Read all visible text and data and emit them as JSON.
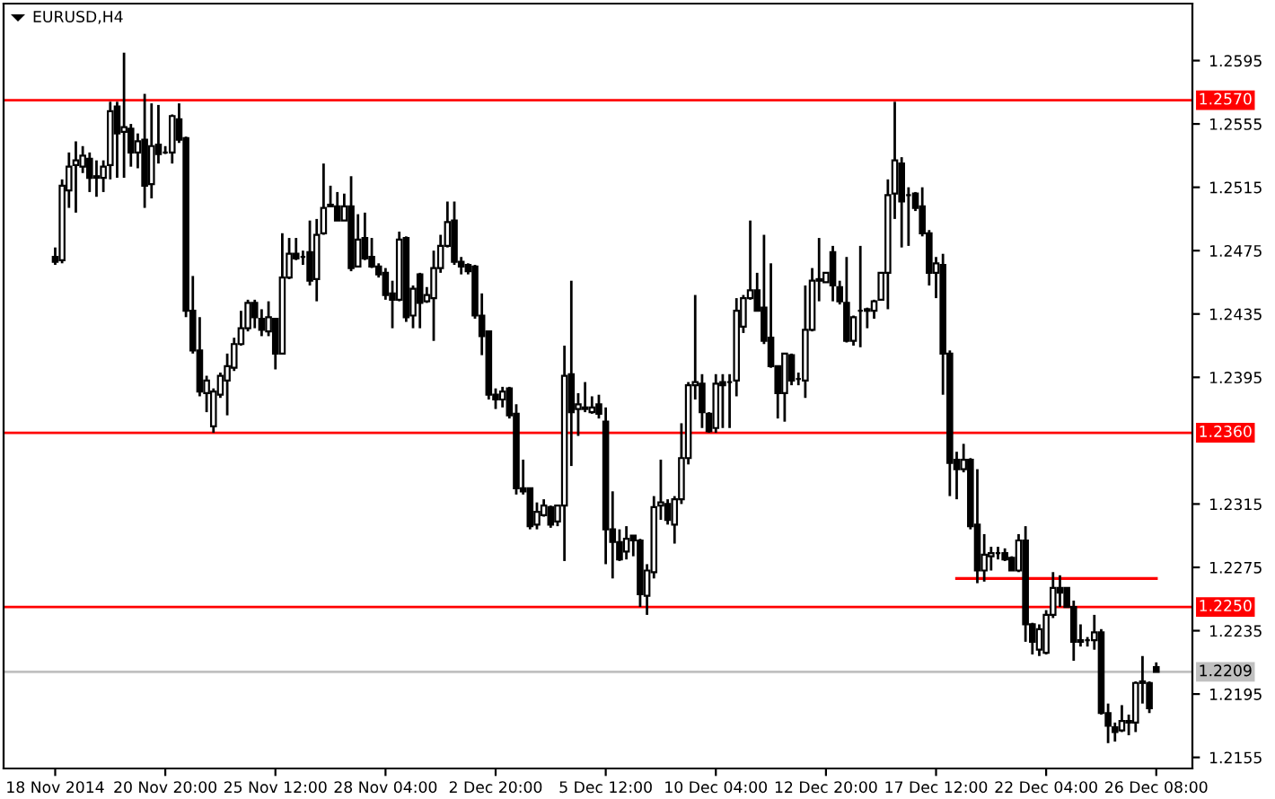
{
  "chart_data": {
    "type": "candlestick",
    "title": "EURUSD,H4",
    "color": "#000000",
    "categories": [
      "18 Nov 2014",
      null,
      null,
      null,
      null,
      null,
      null,
      null,
      null,
      null,
      null,
      null,
      null,
      null,
      null,
      null,
      "20 Nov 20:00",
      null,
      null,
      null,
      null,
      null,
      null,
      null,
      null,
      null,
      null,
      null,
      null,
      null,
      null,
      null,
      "25 Nov 12:00",
      null,
      null,
      null,
      null,
      null,
      null,
      null,
      null,
      null,
      null,
      null,
      null,
      null,
      null,
      null,
      "28 Nov 04:00",
      null,
      null,
      null,
      null,
      null,
      null,
      null,
      null,
      null,
      null,
      null,
      null,
      null,
      null,
      null,
      "2 Dec 20:00",
      null,
      null,
      null,
      null,
      null,
      null,
      null,
      null,
      null,
      null,
      null,
      null,
      null,
      null,
      null,
      "5 Dec 12:00",
      null,
      null,
      null,
      null,
      null,
      null,
      null,
      null,
      null,
      null,
      null,
      null,
      null,
      null,
      null,
      "10 Dec 04:00",
      null,
      null,
      null,
      null,
      null,
      null,
      null,
      null,
      null,
      null,
      null,
      null,
      null,
      null,
      null,
      "12 Dec 20:00",
      null,
      null,
      null,
      null,
      null,
      null,
      null,
      null,
      null,
      null,
      null,
      null,
      null,
      null,
      null,
      "17 Dec 12:00",
      null,
      null,
      null,
      null,
      null,
      null,
      null,
      null,
      null,
      null,
      null,
      null,
      null,
      null,
      null,
      "22 Dec 04:00",
      null,
      null,
      null,
      null,
      null,
      null,
      null,
      null,
      null,
      null,
      null,
      null,
      null,
      null,
      null,
      "26 Dec 08:00"
    ],
    "ohlc": [
      [
        1.2471,
        1.2477,
        1.2466,
        1.2468
      ],
      [
        1.2469,
        1.252,
        1.2467,
        1.2516
      ],
      [
        1.2513,
        1.2537,
        1.2502,
        1.2528
      ],
      [
        1.2529,
        1.2544,
        1.2499,
        1.2532
      ],
      [
        1.2528,
        1.2541,
        1.2524,
        1.2535
      ],
      [
        1.2533,
        1.2537,
        1.2512,
        1.2521
      ],
      [
        1.2522,
        1.2532,
        1.2509,
        1.2521
      ],
      [
        1.2521,
        1.2532,
        1.2512,
        1.2528
      ],
      [
        1.2529,
        1.2569,
        1.252,
        1.2563
      ],
      [
        1.2566,
        1.2569,
        1.2521,
        1.2549
      ],
      [
        1.255,
        1.26,
        1.2521,
        1.2553
      ],
      [
        1.2552,
        1.2555,
        1.2528,
        1.2537
      ],
      [
        1.2537,
        1.2549,
        1.2527,
        1.2544
      ],
      [
        1.2545,
        1.2574,
        1.2502,
        1.2516
      ],
      [
        1.2517,
        1.2568,
        1.2508,
        1.2541
      ],
      [
        1.2542,
        1.2567,
        1.253,
        1.2536
      ],
      [
        1.2537,
        1.2541,
        1.2536,
        1.2537
      ],
      [
        1.2537,
        1.2561,
        1.253,
        1.256
      ],
      [
        1.2558,
        1.2568,
        1.2543,
        1.2545
      ],
      [
        1.2546,
        1.2547,
        1.2433,
        1.2437
      ],
      [
        1.2437,
        1.2459,
        1.241,
        1.2412
      ],
      [
        1.2412,
        1.2433,
        1.2383,
        1.2386
      ],
      [
        1.2385,
        1.2396,
        1.2373,
        1.2393
      ],
      [
        1.2364,
        1.2388,
        1.236,
        1.2386
      ],
      [
        1.2384,
        1.2398,
        1.2382,
        1.2396
      ],
      [
        1.2393,
        1.241,
        1.2371,
        1.2402
      ],
      [
        1.2401,
        1.242,
        1.2399,
        1.2416
      ],
      [
        1.2416,
        1.2437,
        1.2415,
        1.2426
      ],
      [
        1.2426,
        1.2444,
        1.2424,
        1.2442
      ],
      [
        1.2442,
        1.2444,
        1.2426,
        1.2433
      ],
      [
        1.2432,
        1.2438,
        1.2421,
        1.2425
      ],
      [
        1.2424,
        1.2443,
        1.2421,
        1.2433
      ],
      [
        1.2432,
        1.2432,
        1.24,
        1.241
      ],
      [
        1.241,
        1.2486,
        1.241,
        1.2458
      ],
      [
        1.2458,
        1.2483,
        1.2457,
        1.2473
      ],
      [
        1.2473,
        1.2483,
        1.2469,
        1.247
      ],
      [
        1.2471,
        1.2475,
        1.2466,
        1.2471
      ],
      [
        1.2474,
        1.2494,
        1.2453,
        1.2456
      ],
      [
        1.2457,
        1.2495,
        1.2443,
        1.2485
      ],
      [
        1.2486,
        1.253,
        1.2485,
        1.2502
      ],
      [
        1.2503,
        1.2516,
        1.2503,
        1.2504
      ],
      [
        1.2503,
        1.2512,
        1.2494,
        1.2494
      ],
      [
        1.2494,
        1.2511,
        1.2494,
        1.2503
      ],
      [
        1.2503,
        1.2522,
        1.2462,
        1.2464
      ],
      [
        1.2465,
        1.2498,
        1.2465,
        1.2482
      ],
      [
        1.2483,
        1.2499,
        1.2469,
        1.247
      ],
      [
        1.2471,
        1.2483,
        1.2464,
        1.2465
      ],
      [
        1.2465,
        1.2467,
        1.2458,
        1.246
      ],
      [
        1.2461,
        1.2464,
        1.2444,
        1.2447
      ],
      [
        1.2448,
        1.2456,
        1.2426,
        1.2444
      ],
      [
        1.2444,
        1.2487,
        1.2443,
        1.2482
      ],
      [
        1.2483,
        1.2484,
        1.243,
        1.2433
      ],
      [
        1.2434,
        1.2453,
        1.2426,
        1.2451
      ],
      [
        1.246,
        1.2461,
        1.2426,
        1.2442
      ],
      [
        1.2443,
        1.2452,
        1.2442,
        1.2447
      ],
      [
        1.2445,
        1.2475,
        1.2418,
        1.2464
      ],
      [
        1.2464,
        1.2485,
        1.2461,
        1.2478
      ],
      [
        1.2478,
        1.2506,
        1.2477,
        1.2493
      ],
      [
        1.2494,
        1.2506,
        1.2466,
        1.2468
      ],
      [
        1.2468,
        1.2471,
        1.246,
        1.2465
      ],
      [
        1.2466,
        1.2467,
        1.246,
        1.2462
      ],
      [
        1.2465,
        1.2466,
        1.2432,
        1.2434
      ],
      [
        1.2434,
        1.2448,
        1.2409,
        1.2421
      ],
      [
        1.2424,
        1.2424,
        1.2381,
        1.2384
      ],
      [
        1.2384,
        1.2388,
        1.2375,
        1.2381
      ],
      [
        1.2381,
        1.2389,
        1.2376,
        1.2386
      ],
      [
        1.2388,
        1.2389,
        1.2369,
        1.2371
      ],
      [
        1.2372,
        1.2378,
        1.2321,
        1.2325
      ],
      [
        1.2325,
        1.2343,
        1.2321,
        1.2323
      ],
      [
        1.2325,
        1.2325,
        1.2299,
        1.2301
      ],
      [
        1.2302,
        1.2316,
        1.2299,
        1.231
      ],
      [
        1.2308,
        1.2318,
        1.2307,
        1.2314
      ],
      [
        1.2313,
        1.2314,
        1.23,
        1.2302
      ],
      [
        1.2304,
        1.2314,
        1.2301,
        1.2314
      ],
      [
        1.2314,
        1.2415,
        1.2279,
        1.2396
      ],
      [
        1.2397,
        1.2456,
        1.2339,
        1.2373
      ],
      [
        1.2375,
        1.2385,
        1.2358,
        1.2378
      ],
      [
        1.2375,
        1.2392,
        1.2373,
        1.2376
      ],
      [
        1.2373,
        1.2383,
        1.2372,
        1.2376
      ],
      [
        1.2378,
        1.2384,
        1.2369,
        1.2372
      ],
      [
        1.2367,
        1.2376,
        1.2277,
        1.2299
      ],
      [
        1.2299,
        1.2323,
        1.2268,
        1.2291
      ],
      [
        1.2291,
        1.2299,
        1.2279,
        1.228
      ],
      [
        1.2285,
        1.2301,
        1.228,
        1.2293
      ],
      [
        1.2295,
        1.2295,
        1.2282,
        1.2292
      ],
      [
        1.2292,
        1.2293,
        1.225,
        1.2258
      ],
      [
        1.2257,
        1.2277,
        1.2245,
        1.2273
      ],
      [
        1.2272,
        1.232,
        1.2268,
        1.2313
      ],
      [
        1.2314,
        1.2343,
        1.2305,
        1.2316
      ],
      [
        1.2315,
        1.2318,
        1.2302,
        1.2305
      ],
      [
        1.2302,
        1.232,
        1.229,
        1.2318
      ],
      [
        1.2318,
        1.2366,
        1.2315,
        1.2344
      ],
      [
        1.2344,
        1.2392,
        1.234,
        1.239
      ],
      [
        1.239,
        1.2447,
        1.2381,
        1.2392
      ],
      [
        1.2391,
        1.2397,
        1.2363,
        1.2373
      ],
      [
        1.2372,
        1.2373,
        1.236,
        1.2361
      ],
      [
        1.2363,
        1.2397,
        1.236,
        1.2391
      ],
      [
        1.2392,
        1.2397,
        1.2363,
        1.239
      ],
      [
        1.2392,
        1.2397,
        1.2363,
        1.2392
      ],
      [
        1.2393,
        1.2445,
        1.2383,
        1.2437
      ],
      [
        1.2427,
        1.2447,
        1.2423,
        1.2445
      ],
      [
        1.2445,
        1.2494,
        1.2444,
        1.245
      ],
      [
        1.245,
        1.2461,
        1.2437,
        1.2437
      ],
      [
        1.2439,
        1.2485,
        1.2416,
        1.2418
      ],
      [
        1.242,
        1.2467,
        1.2401,
        1.2402
      ],
      [
        1.2402,
        1.2402,
        1.2369,
        1.2385
      ],
      [
        1.2385,
        1.241,
        1.2367,
        1.241
      ],
      [
        1.2409,
        1.241,
        1.239,
        1.2393
      ],
      [
        1.2394,
        1.2398,
        1.239,
        1.2394
      ],
      [
        1.2393,
        1.2453,
        1.2382,
        1.2425
      ],
      [
        1.2425,
        1.2464,
        1.2424,
        1.2456
      ],
      [
        1.2456,
        1.2483,
        1.2443,
        1.2457
      ],
      [
        1.2455,
        1.2461,
        1.2455,
        1.2461
      ],
      [
        1.2474,
        1.2478,
        1.2443,
        1.2453
      ],
      [
        1.2452,
        1.2456,
        1.2441,
        1.2443
      ],
      [
        1.2442,
        1.2471,
        1.2417,
        1.2418
      ],
      [
        1.2418,
        1.2434,
        1.2415,
        1.2433
      ],
      [
        1.2437,
        1.2478,
        1.2414,
        1.2437
      ],
      [
        1.2437,
        1.2439,
        1.2426,
        1.2438
      ],
      [
        1.2437,
        1.2444,
        1.2432,
        1.2443
      ],
      [
        1.2444,
        1.2461,
        1.2444,
        1.2461
      ],
      [
        1.2461,
        1.252,
        1.2438,
        1.251
      ],
      [
        1.2511,
        1.2569,
        1.2495,
        1.2532
      ],
      [
        1.253,
        1.2534,
        1.2477,
        1.2506
      ],
      [
        1.251,
        1.2515,
        1.2478,
        1.251
      ],
      [
        1.2511,
        1.2512,
        1.25,
        1.2502
      ],
      [
        1.2503,
        1.2515,
        1.2484,
        1.2486
      ],
      [
        1.2486,
        1.2488,
        1.2453,
        1.2461
      ],
      [
        1.2461,
        1.2471,
        1.2445,
        1.2467
      ],
      [
        1.2466,
        1.2473,
        1.2384,
        1.241
      ],
      [
        1.241,
        1.2412,
        1.232,
        1.2341
      ],
      [
        1.2343,
        1.2348,
        1.2318,
        1.2337
      ],
      [
        1.2337,
        1.2353,
        1.2335,
        1.2343
      ],
      [
        1.2343,
        1.2344,
        1.2299,
        1.2301
      ],
      [
        1.2302,
        1.2337,
        1.2265,
        1.2273
      ],
      [
        1.2273,
        1.2296,
        1.2266,
        1.2283
      ],
      [
        1.2282,
        1.2288,
        1.2273,
        1.2284
      ],
      [
        1.2284,
        1.2288,
        1.228,
        1.2284
      ],
      [
        1.2284,
        1.2287,
        1.2279,
        1.228
      ],
      [
        1.2281,
        1.2282,
        1.2273,
        1.2273
      ],
      [
        1.2273,
        1.2296,
        1.2272,
        1.2292
      ],
      [
        1.2292,
        1.2301,
        1.2228,
        1.2239
      ],
      [
        1.2239,
        1.224,
        1.222,
        1.2228
      ],
      [
        1.2223,
        1.2239,
        1.2219,
        1.2236
      ],
      [
        1.2221,
        1.2248,
        1.222,
        1.2245
      ],
      [
        1.2245,
        1.2272,
        1.2243,
        1.2262
      ],
      [
        1.2262,
        1.227,
        1.225,
        1.2259
      ],
      [
        1.2262,
        1.2262,
        1.225,
        1.225
      ],
      [
        1.225,
        1.2254,
        1.2216,
        1.2228
      ],
      [
        1.2229,
        1.2239,
        1.2225,
        1.2228
      ],
      [
        1.2229,
        1.2231,
        1.2225,
        1.2229
      ],
      [
        1.2229,
        1.2245,
        1.2223,
        1.2234
      ],
      [
        1.2234,
        1.2236,
        1.2182,
        1.2183
      ],
      [
        1.2183,
        1.2189,
        1.2164,
        1.2175
      ],
      [
        1.2174,
        1.2177,
        1.2165,
        1.2171
      ],
      [
        1.2172,
        1.2188,
        1.2171,
        1.2178
      ],
      [
        1.2178,
        1.2182,
        1.2169,
        1.2177
      ],
      [
        1.2177,
        1.2203,
        1.2171,
        1.2202
      ],
      [
        1.2202,
        1.2219,
        1.2189,
        1.2203
      ],
      [
        1.2202,
        1.2203,
        1.2183,
        1.2186
      ],
      [
        1.2212,
        1.2215,
        1.2209,
        1.2209
      ]
    ],
    "series": [
      {
        "type": "line",
        "color": "#ff0000",
        "values": [
          null,
          null,
          null,
          null,
          null,
          null,
          null,
          null,
          null,
          null,
          null,
          null,
          null,
          null,
          null,
          null,
          null,
          null,
          null,
          null,
          null,
          null,
          null,
          null,
          null,
          null,
          null,
          null,
          null,
          null,
          null,
          null,
          null,
          null,
          null,
          null,
          null,
          null,
          null,
          null,
          null,
          null,
          null,
          null,
          null,
          null,
          null,
          null,
          null,
          null,
          null,
          null,
          null,
          null,
          null,
          null,
          null,
          null,
          null,
          null,
          null,
          null,
          null,
          null,
          null,
          null,
          null,
          null,
          null,
          null,
          null,
          null,
          null,
          null,
          null,
          null,
          null,
          null,
          null,
          null,
          null,
          null,
          null,
          null,
          null,
          null,
          null,
          null,
          null,
          null,
          null,
          null,
          null,
          null,
          null,
          null,
          null,
          null,
          null,
          null,
          null,
          null,
          null,
          null,
          null,
          null,
          null,
          null,
          null,
          null,
          null,
          null,
          null,
          null,
          null,
          null,
          null,
          null,
          null,
          null,
          null,
          null,
          null,
          null,
          null,
          null,
          null,
          null,
          null,
          null,
          null,
          1.2268,
          1.2268,
          1.2268,
          1.2268,
          1.2268,
          1.2268,
          1.2268,
          1.2268,
          1.2268,
          1.2268,
          1.2268,
          1.2268,
          1.2268,
          1.2268,
          1.2268,
          1.2268,
          1.2268,
          1.2268,
          1.2268,
          1.2268,
          1.2268,
          1.2268,
          1.2268,
          1.2268,
          1.2268,
          1.2268,
          1.2268,
          1.2268,
          1.2268,
          1.2268
        ]
      }
    ],
    "ref_lines": [
      {
        "axis": "y",
        "value": 1.257,
        "label": "1.2570",
        "color": "#ff0000"
      },
      {
        "axis": "y",
        "value": 1.236,
        "label": "1.2360",
        "color": "#ff0000"
      },
      {
        "axis": "y",
        "value": 1.225,
        "label": "1.2250",
        "color": "#ff0000"
      },
      {
        "axis": "y",
        "value": 1.2209,
        "label": "1.2209",
        "color": "#c0c0c0"
      }
    ],
    "ylim": [
      1.2148,
      1.2631
    ],
    "yticks": [
      1.2595,
      1.2555,
      1.2515,
      1.2475,
      1.2435,
      1.2395,
      1.2315,
      1.2275,
      1.2235,
      1.2195,
      1.2155
    ],
    "grid": false,
    "legend": false
  }
}
